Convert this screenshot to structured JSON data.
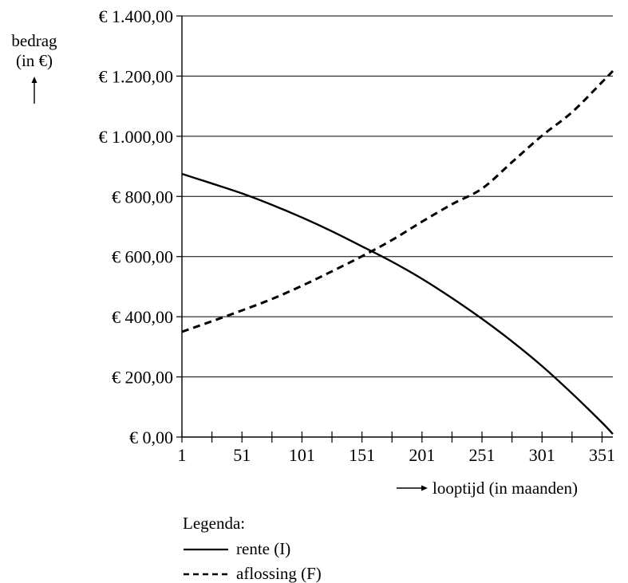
{
  "chart_data": {
    "type": "line",
    "title": "",
    "ylabel_lines": [
      "bedrag",
      "(in €)"
    ],
    "xlabel": "looptijd (in maanden)",
    "x_ticks": [
      1,
      51,
      101,
      151,
      201,
      251,
      301,
      351
    ],
    "x_tick_labels": [
      "1",
      "51",
      "101",
      "151",
      "201",
      "251",
      "301",
      "351"
    ],
    "y_ticks": [
      0,
      200,
      400,
      600,
      800,
      1000,
      1200,
      1400
    ],
    "y_tick_labels": [
      "€ 0,00",
      "€ 200,00",
      "€ 400,00",
      "€ 600,00",
      "€ 800,00",
      "€ 1.000,00",
      "€ 1.200,00",
      "€ 1.400,00"
    ],
    "xlim": [
      1,
      360
    ],
    "ylim": [
      0,
      1400
    ],
    "grid": "horizontal",
    "legend_title": "Legenda:",
    "series": [
      {
        "name": "rente (I)",
        "style": "solid",
        "color": "#000000",
        "x": [
          1,
          26,
          51,
          76,
          101,
          126,
          151,
          176,
          201,
          226,
          251,
          276,
          301,
          326,
          351,
          360
        ],
        "y": [
          875,
          843,
          810,
          772,
          730,
          684,
          634,
          583,
          526,
          462,
          393,
          318,
          236,
          145,
          48,
          10
        ]
      },
      {
        "name": "aflossing (F)",
        "style": "dashed",
        "color": "#000000",
        "x": [
          1,
          26,
          51,
          76,
          101,
          126,
          151,
          176,
          201,
          226,
          251,
          276,
          301,
          326,
          351,
          360
        ],
        "y": [
          350,
          385,
          421,
          459,
          503,
          551,
          601,
          655,
          716,
          774,
          826,
          914,
          1002,
          1080,
          1180,
          1217
        ]
      }
    ]
  }
}
